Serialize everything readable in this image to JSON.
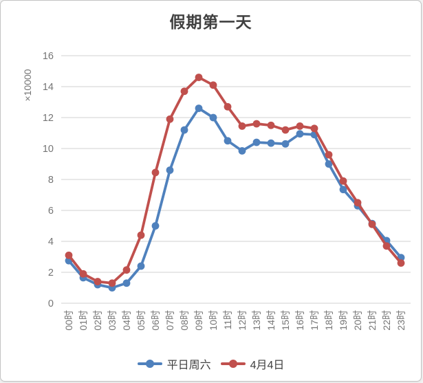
{
  "title": "假期第一天",
  "chart_data": {
    "type": "line",
    "categories": [
      "00时",
      "01时",
      "02时",
      "03时",
      "04时",
      "05时",
      "06时",
      "07时",
      "08时",
      "09时",
      "10时",
      "11时",
      "12时",
      "13时",
      "14时",
      "15时",
      "16时",
      "17时",
      "18时",
      "19时",
      "20时",
      "21时",
      "22时",
      "23时"
    ],
    "series": [
      {
        "name": "平日周六",
        "color": "#4F81BD",
        "values": [
          2.75,
          1.65,
          1.2,
          1.0,
          1.3,
          2.4,
          5.0,
          8.6,
          11.2,
          12.6,
          12.0,
          10.5,
          9.85,
          10.4,
          10.35,
          10.3,
          10.95,
          10.9,
          9.0,
          7.35,
          6.3,
          5.15,
          4.05,
          2.95
        ]
      },
      {
        "name": "4月4日",
        "color": "#C0504D",
        "values": [
          3.1,
          1.9,
          1.4,
          1.3,
          2.15,
          4.4,
          8.45,
          11.9,
          13.7,
          14.6,
          14.1,
          12.7,
          11.45,
          11.6,
          11.5,
          11.2,
          11.45,
          11.3,
          9.6,
          7.9,
          6.5,
          5.1,
          3.7,
          2.6
        ]
      }
    ],
    "title": "假期第一天",
    "xlabel": "",
    "ylabel": "×10000",
    "ylim": [
      0,
      16
    ],
    "ytick_interval": 2,
    "grid": true,
    "legend_position": "bottom"
  },
  "colors": {
    "grid": "#d9d9d9",
    "axis_text": "#757575",
    "title_text": "#404040",
    "legend_text": "#404040",
    "card_border": "#c3c3c3"
  }
}
